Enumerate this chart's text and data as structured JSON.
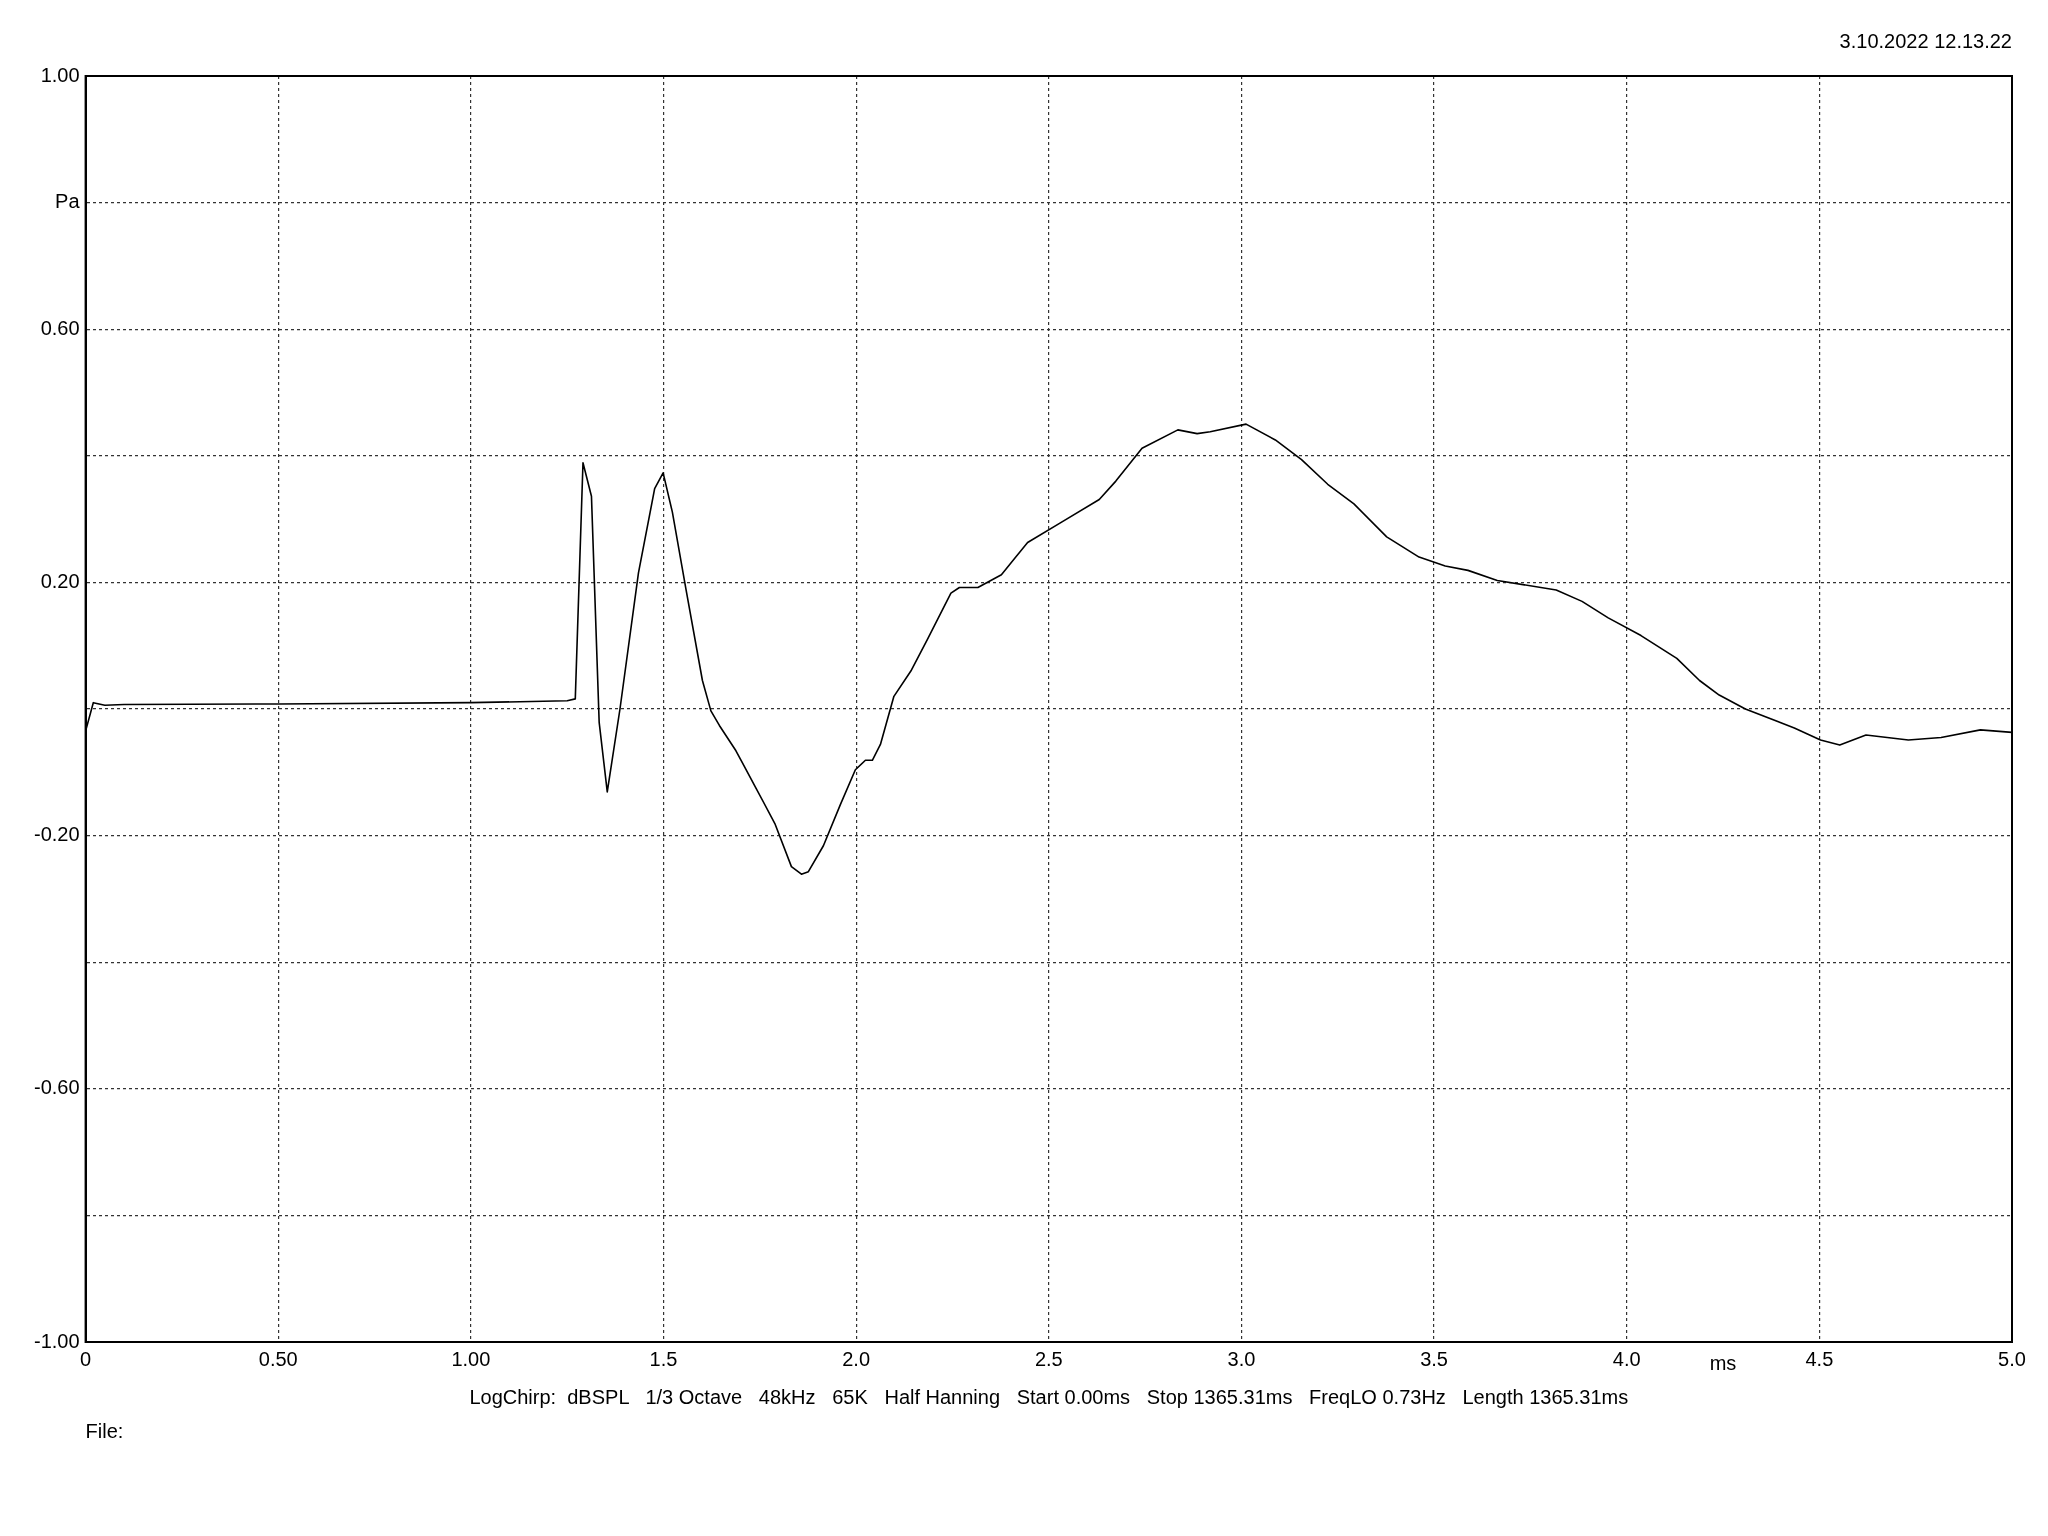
{
  "chart_data": {
    "type": "line",
    "xlabel": "ms",
    "ylabel": "Pa",
    "annotations": [
      "3.10.2022 12.13.22",
      "LogChirp:  dBSPL   1/3 Octave   48kHz   65K   Half Hanning   Start 0.00ms   Stop 1365.31ms   FreqLO 0.73Hz   Length 1365.31ms",
      "File:"
    ],
    "series": [
      {
        "color": "#000000",
        "x": [
          0,
          0.02,
          0.05,
          0.1,
          0.5,
          1.0,
          1.25,
          1.271,
          1.291,
          1.313,
          1.333,
          1.354,
          1.387,
          1.435,
          1.477,
          1.499,
          1.523,
          1.558,
          1.601,
          1.623,
          1.645,
          1.688,
          1.741,
          1.789,
          1.832,
          1.858,
          1.876,
          1.915,
          1.959,
          1.998,
          2.024,
          2.042,
          2.063,
          2.098,
          2.142,
          2.185,
          2.246,
          2.268,
          2.316,
          2.377,
          2.445,
          2.53,
          2.631,
          2.674,
          2.742,
          2.835,
          2.885,
          2.919,
          3.012,
          3.088,
          3.156,
          3.224,
          3.292,
          3.377,
          3.461,
          3.529,
          3.588,
          3.664,
          3.817,
          3.884,
          3.952,
          4.037,
          4.13,
          4.189,
          4.24,
          4.308,
          4.435,
          4.503,
          4.553,
          4.621,
          4.731,
          4.816,
          4.918,
          5.0
        ],
        "values": [
          -0.035,
          0.01,
          0.006,
          0.007,
          0.008,
          0.01,
          0.013,
          0.016,
          0.389,
          0.336,
          -0.021,
          -0.131,
          0.0,
          0.215,
          0.348,
          0.373,
          0.311,
          0.19,
          0.045,
          -0.003,
          -0.026,
          -0.066,
          -0.126,
          -0.181,
          -0.249,
          -0.261,
          -0.257,
          -0.216,
          -0.151,
          -0.096,
          -0.081,
          -0.081,
          -0.056,
          0.02,
          0.06,
          0.11,
          0.183,
          0.192,
          0.192,
          0.212,
          0.263,
          0.294,
          0.331,
          0.36,
          0.412,
          0.441,
          0.435,
          0.438,
          0.45,
          0.425,
          0.394,
          0.355,
          0.324,
          0.272,
          0.24,
          0.226,
          0.219,
          0.203,
          0.188,
          0.17,
          0.144,
          0.116,
          0.08,
          0.045,
          0.022,
          0.0,
          -0.03,
          -0.049,
          -0.057,
          -0.041,
          -0.049,
          -0.045,
          -0.033,
          -0.037
        ]
      }
    ],
    "xlim": [
      0,
      5
    ],
    "xticks": [
      0,
      {
        "value": 0.5,
        "label": "0.50"
      },
      {
        "value": 1,
        "label": "1.00"
      },
      1.5,
      {
        "value": 2,
        "label": "2.0"
      },
      2.5,
      {
        "value": 3,
        "label": "3.0"
      },
      3.5,
      {
        "value": 4,
        "label": "4.0"
      },
      4.5,
      {
        "value": 5,
        "label": "5.0"
      }
    ],
    "ylim": [
      -1,
      1
    ],
    "yticks": [
      {
        "value": -1,
        "label": "-1.00"
      },
      {
        "value": -0.8,
        "label": null
      },
      {
        "value": -0.6,
        "label": "-0.60"
      },
      {
        "value": -0.4,
        "label": null
      },
      {
        "value": -0.2,
        "label": "-0.20"
      },
      {
        "value": 0,
        "label": null
      },
      {
        "value": 0.2,
        "label": "0.20"
      },
      {
        "value": 0.4,
        "label": null
      },
      {
        "value": 0.6,
        "label": "0.60"
      },
      {
        "value": 0.8,
        "label": null
      },
      {
        "value": 1,
        "label": "1.00"
      }
    ],
    "grid": true,
    "legend": false,
    "marker": "none",
    "line_style": "solid"
  }
}
